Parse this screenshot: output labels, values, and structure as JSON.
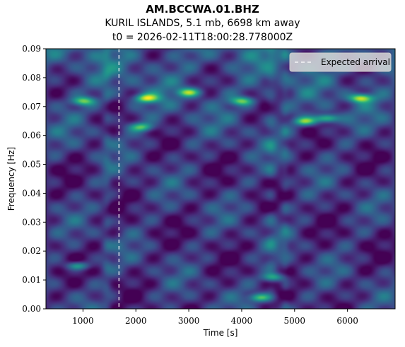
{
  "header": {
    "station": "AM.BCCWA.01.BHZ",
    "event": "KURIL ISLANDS, 5.1 mb, 6698 km away",
    "origin": "t0 = 2026-02-11T18:00:28.778000Z"
  },
  "chart_data": {
    "type": "heatmap",
    "colormap": "viridis",
    "xlabel": "Time [s]",
    "ylabel": "Frequency [Hz]",
    "xlim": [
      300,
      6900
    ],
    "ylim": [
      0.0,
      0.09
    ],
    "xticks": [
      1000,
      2000,
      3000,
      4000,
      5000,
      6000
    ],
    "xtick_labels": [
      "1000",
      "2000",
      "3000",
      "4000",
      "5000",
      "6000"
    ],
    "yticks": [
      0.0,
      0.01,
      0.02,
      0.03,
      0.04,
      0.05,
      0.06,
      0.07,
      0.08,
      0.09
    ],
    "ytick_labels": [
      "0.00",
      "0.01",
      "0.02",
      "0.03",
      "0.04",
      "0.05",
      "0.06",
      "0.07",
      "0.08",
      "0.09"
    ],
    "expected_arrival": 1680,
    "legend": {
      "position": "top-right",
      "entries": [
        "Expected arrival"
      ]
    },
    "bright_features": [
      {
        "t": 1000,
        "f": 0.072,
        "level": 0.8
      },
      {
        "t": 2200,
        "f": 0.073,
        "level": 0.95
      },
      {
        "t": 3000,
        "f": 0.075,
        "level": 0.85
      },
      {
        "t": 4000,
        "f": 0.072,
        "level": 0.8
      },
      {
        "t": 5200,
        "f": 0.065,
        "level": 0.85
      },
      {
        "t": 5600,
        "f": 0.066,
        "level": 0.9
      },
      {
        "t": 6250,
        "f": 0.073,
        "level": 1.0
      },
      {
        "t": 2100,
        "f": 0.063,
        "level": 0.75
      },
      {
        "t": 4350,
        "f": 0.004,
        "level": 0.8
      },
      {
        "t": 900,
        "f": 0.015,
        "level": 0.7
      },
      {
        "t": 4600,
        "f": 0.011,
        "level": 0.7
      }
    ]
  }
}
